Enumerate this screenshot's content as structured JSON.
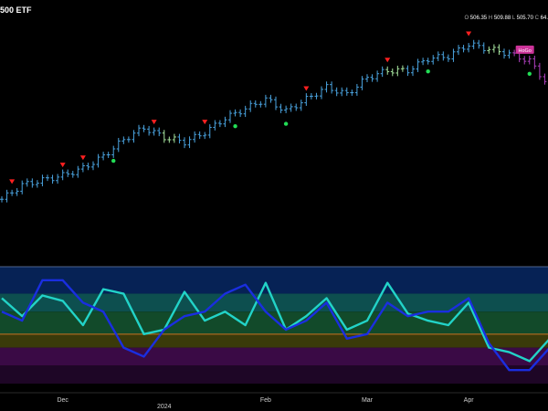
{
  "header": {
    "title": "500 ETF",
    "ohlc": [
      {
        "label": "O",
        "value": "506.35"
      },
      {
        "label": "H",
        "value": "509.88"
      },
      {
        "label": "L",
        "value": "505.70"
      },
      {
        "label": "C",
        "value": "64."
      }
    ],
    "badge": "HoGo"
  },
  "colors": {
    "background": "#000000",
    "price_bar": "#4aa3df",
    "price_bar_light": "#a8e6a0",
    "price_bar_purple": "#b040c0",
    "marker_sell": "#ff2020",
    "marker_buy": "#22dd55",
    "osc_line_cyan": "#22d3c8",
    "osc_line_blue": "#1a2ee0",
    "osc_midline": "#c87020",
    "band_top": "#062255",
    "band_teal": "#0d4f4f",
    "band_green": "#124a2a",
    "band_olive": "#3a3a0a",
    "band_purple": "#3a0a45",
    "band_bottom": "#1e0626",
    "badge_bg": "#cc3399"
  },
  "chart_data": [
    {
      "type": "bar",
      "panel": "price",
      "title": "500 ETF",
      "x_ticks": [
        "Dec",
        "2024",
        "Feb",
        "Mar",
        "Apr"
      ],
      "bar_index": [
        0,
        4,
        8,
        12,
        16,
        20,
        24,
        28,
        32,
        36,
        40,
        44,
        48,
        52,
        56,
        60,
        64,
        68,
        72,
        76,
        80,
        84,
        88,
        92,
        96,
        100,
        104,
        108
      ],
      "close": [
        456,
        462,
        464,
        466,
        469,
        474,
        481,
        486,
        482,
        480,
        484,
        490,
        494,
        498,
        493,
        498,
        503,
        500,
        507,
        510,
        510,
        515,
        516,
        521,
        519,
        517,
        514,
        503
      ],
      "ylim": [
        440,
        530
      ],
      "sell_signals_at": [
        2,
        12,
        16,
        30,
        40,
        60,
        76,
        92
      ],
      "buy_signals_at": [
        22,
        46,
        56,
        84,
        104
      ]
    },
    {
      "type": "line",
      "panel": "oscillator",
      "x": [
        0,
        4,
        8,
        12,
        16,
        20,
        24,
        28,
        32,
        36,
        40,
        44,
        48,
        52,
        56,
        60,
        64,
        68,
        72,
        76,
        80,
        84,
        88,
        92,
        96,
        100,
        104,
        108
      ],
      "values": [
        75,
        55,
        78,
        72,
        45,
        85,
        80,
        35,
        40,
        82,
        50,
        60,
        45,
        92,
        40,
        55,
        75,
        40,
        50,
        92,
        58,
        50,
        45,
        70,
        20,
        15,
        5,
        30
      ],
      "series": [
        {
          "name": "cyan",
          "values": [
            75,
            55,
            78,
            72,
            45,
            85,
            80,
            35,
            40,
            82,
            50,
            60,
            45,
            92,
            40,
            55,
            75,
            40,
            50,
            92,
            58,
            50,
            45,
            70,
            20,
            15,
            5,
            30
          ]
        },
        {
          "name": "blue",
          "values": [
            60,
            50,
            95,
            95,
            70,
            60,
            20,
            10,
            40,
            55,
            60,
            80,
            90,
            60,
            40,
            50,
            70,
            30,
            35,
            70,
            55,
            60,
            60,
            75,
            25,
            -5,
            -5,
            20
          ]
        }
      ],
      "ylim": [
        -20,
        110
      ],
      "midline": 35,
      "bands": [
        80,
        60,
        35,
        20,
        0
      ]
    }
  ]
}
